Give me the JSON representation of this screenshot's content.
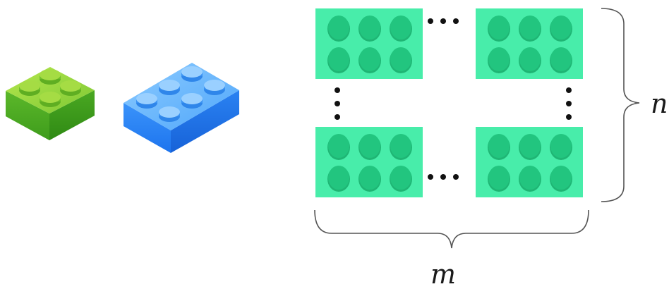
{
  "labels": {
    "rows": "n",
    "cols": "m"
  },
  "grid": {
    "bricks_per_corner_block": 6,
    "stud_rows": 2,
    "stud_cols": 3,
    "ellipsis": "…"
  },
  "colors": {
    "background": "#ffffff",
    "grid_brick": "#48EDAA",
    "grid_stud": "#22C57F",
    "green_brick_top": "#8BD23A",
    "green_brick_side": "#3DA01E",
    "blue_brick_top": "#62B8FF",
    "blue_brick_side": "#1E78F0",
    "brace": "#555555",
    "dots": "#111111"
  }
}
